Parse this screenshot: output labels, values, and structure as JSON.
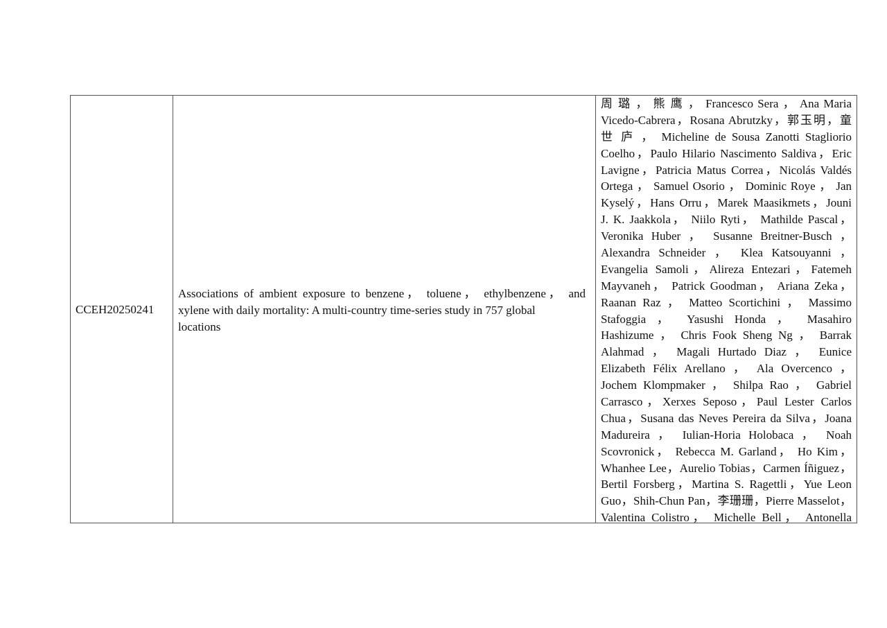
{
  "row": {
    "id": "CCEH20250241",
    "title_lines": [
      "Associations of ambient exposure to benzene， toluene， ethylbenzene， and",
      "xylene with daily mortality: A multi-country time-series study in 757 global",
      "locations"
    ],
    "author_lines": [
      "周 璐 ， 熊 鹰 ， Francesco Sera ， Ana Maria",
      "Vicedo-Cabrera，Rosana Abrutzky，郭玉明，童",
      "世 庐 ， Micheline de Sousa Zanotti Stagliorio",
      "Coelho，Paulo Hilario Nascimento Saldiva，Eric",
      "Lavigne，Patricia Matus Correa，Nicolás Valdés",
      "Ortega ， Samuel Osorio ， Dominic Roye ， Jan",
      "Kyselý，Hans Orru，Marek Maasikmets，Jouni",
      "J. K. Jaakkola， Niilo Ryti， Mathilde Pascal，",
      "Veronika Huber ， Susanne Breitner-Busch ，",
      "Alexandra Schneider ， Klea Katsouyanni ，",
      "Evangelia Samoli，Alireza Entezari，Fatemeh",
      "Mayvaneh， Patrick Goodman， Ariana Zeka，",
      "Raanan Raz ， Matteo Scortichini ， Massimo",
      "Stafoggia ， Yasushi Honda ， Masahiro",
      "Hashizume ， Chris Fook Sheng Ng ， Barrak",
      "Alahmad ， Magali Hurtado Diaz ， Eunice",
      "Elizabeth Félix Arellano ， Ala Overcenco ，",
      "Jochem Klompmaker ， Shilpa Rao ， Gabriel",
      "Carrasco，Xerxes Seposo，Paul Lester Carlos",
      "Chua，Susana das Neves Pereira da Silva，Joana",
      "Madureira ， Iulian-Horia Holobaca ， Noah",
      "Scovronick， Rebecca M. Garland， Ho Kim，",
      "Whanhee Lee，Aurelio Tobias，Carmen Íñiguez，",
      "Bertil Forsberg，Martina S. Ragettli，Yue Leon",
      "Guo，Shih-Chun Pan，李珊珊，Pierre Masselot，",
      "Valentina Colistro， Michelle Bell， Antonella"
    ]
  }
}
